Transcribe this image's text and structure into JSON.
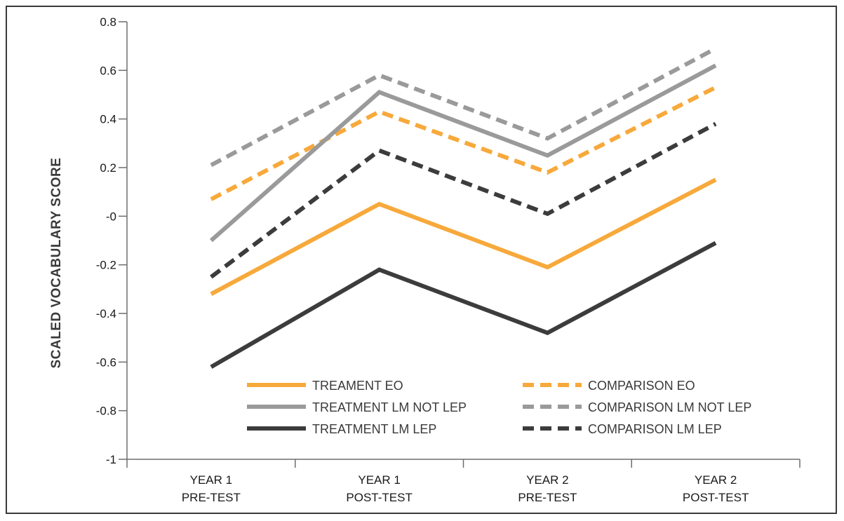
{
  "chart_data": {
    "type": "line",
    "ylabel": "SCALED VOCABULARY SCORE",
    "xlabel": "",
    "ylim": [
      -1,
      0.8
    ],
    "yticks": [
      0.8,
      0.6,
      0.4,
      0.2,
      0,
      -0.2,
      -0.4,
      -0.6,
      -0.8,
      -1
    ],
    "ytick_labels": [
      "0.8",
      "0.6",
      "0.4",
      "0.2",
      "-0",
      "-0.2",
      "-0.4",
      "-0.6",
      "-0.8",
      "-1"
    ],
    "categories": [
      {
        "line1": "YEAR 1",
        "line2": "PRE-TEST"
      },
      {
        "line1": "YEAR 1",
        "line2": "POST-TEST"
      },
      {
        "line1": "YEAR 2",
        "line2": "PRE-TEST"
      },
      {
        "line1": "YEAR 2",
        "line2": "POST-TEST"
      }
    ],
    "grid": false,
    "legend_position": "bottom-center",
    "series": [
      {
        "name": "TREAMENT EO",
        "values": [
          -0.32,
          0.05,
          -0.21,
          0.15
        ],
        "color": "#f7a93b",
        "dashed": false
      },
      {
        "name": "COMPARISON EO",
        "values": [
          0.07,
          0.43,
          0.18,
          0.53
        ],
        "color": "#f7a93b",
        "dashed": true
      },
      {
        "name": "TREATMENT LM NOT LEP",
        "values": [
          -0.1,
          0.51,
          0.25,
          0.62
        ],
        "color": "#9a9a9a",
        "dashed": false
      },
      {
        "name": "COMPARISON LM NOT LEP",
        "values": [
          0.21,
          0.58,
          0.32,
          0.69
        ],
        "color": "#9a9a9a",
        "dashed": true
      },
      {
        "name": "TREATMENT LM LEP",
        "values": [
          -0.62,
          -0.22,
          -0.48,
          -0.11
        ],
        "color": "#3c3c3c",
        "dashed": false
      },
      {
        "name": "COMPARISON LM LEP",
        "values": [
          -0.25,
          0.27,
          0.01,
          0.38
        ],
        "color": "#3c3c3c",
        "dashed": true
      }
    ]
  }
}
